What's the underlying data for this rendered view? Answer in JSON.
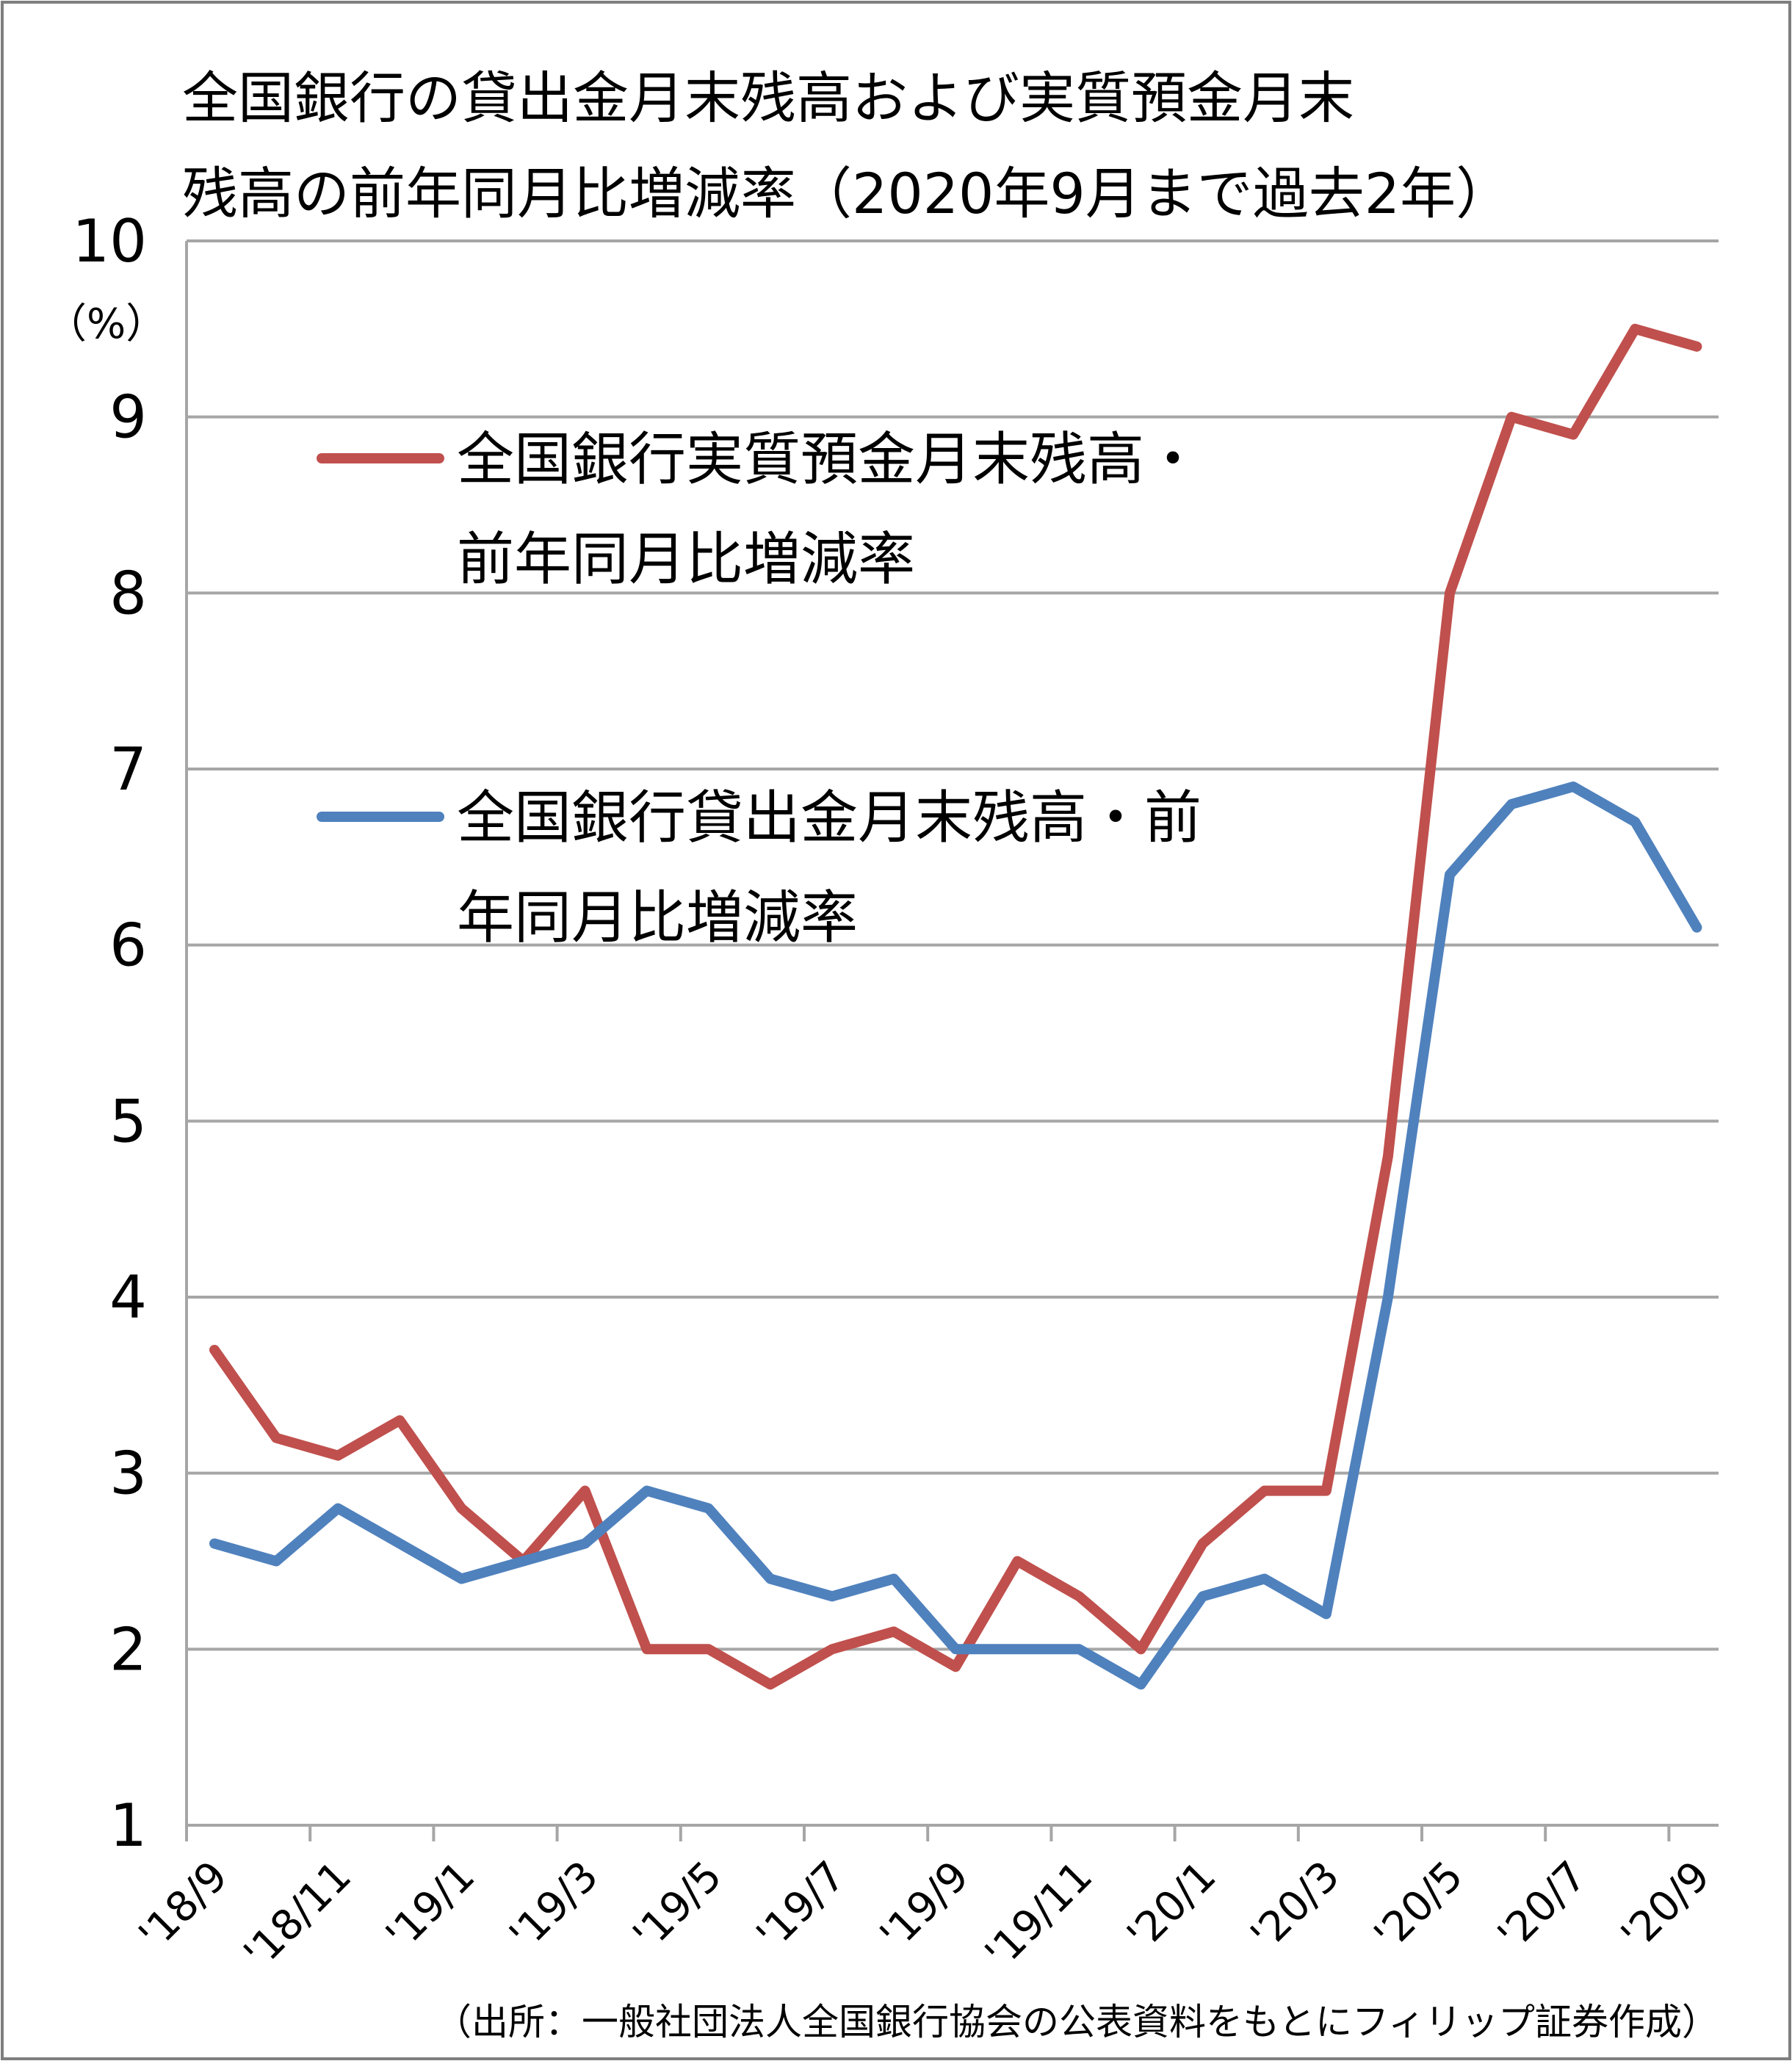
{
  "chart_data": {
    "type": "line",
    "title_lines": [
      "全国銀行の貸出金月末残高および実質預金月末",
      "残高の前年同月比増減率（2020年9月まで過去2年）"
    ],
    "y_unit": "（%）",
    "ylim": [
      1,
      10
    ],
    "y_ticks": [
      1,
      2,
      3,
      4,
      5,
      6,
      7,
      8,
      9,
      10
    ],
    "grid": "horizontal",
    "legend_position": "upper-left-inside",
    "x_tick_labels": [
      "'18/9",
      "'18/11",
      "'19/1",
      "'19/3",
      "'19/5",
      "'19/7",
      "'19/9",
      "'19/11",
      "'20/1",
      "'20/3",
      "'20/5",
      "'20/7",
      "'20/9"
    ],
    "x": [
      "'18/9",
      "'18/10",
      "'18/11",
      "'18/12",
      "'19/1",
      "'19/2",
      "'19/3",
      "'19/4",
      "'19/5",
      "'19/6",
      "'19/7",
      "'19/8",
      "'19/9",
      "'19/10",
      "'19/11",
      "'19/12",
      "'20/1",
      "'20/2",
      "'20/3",
      "'20/4",
      "'20/5",
      "'20/6",
      "'20/7",
      "'20/8",
      "'20/9"
    ],
    "series": [
      {
        "name_lines": [
          "全国銀行実質預金月末残高・",
          "前年同月比増減率"
        ],
        "color": "#c0504d",
        "values": [
          3.7,
          3.2,
          3.1,
          3.3,
          2.8,
          2.5,
          2.9,
          2.0,
          2.0,
          1.8,
          2.0,
          2.1,
          1.9,
          2.5,
          2.3,
          2.0,
          2.6,
          2.9,
          2.9,
          4.8,
          8.0,
          9.0,
          8.9,
          9.5,
          9.4
        ]
      },
      {
        "name_lines": [
          "全国銀行貸出金月末残高・前",
          "年同月比増減率"
        ],
        "color": "#4f81bd",
        "values": [
          2.6,
          2.5,
          2.8,
          2.6,
          2.4,
          2.5,
          2.6,
          2.9,
          2.8,
          2.4,
          2.3,
          2.4,
          2.0,
          2.0,
          2.0,
          1.8,
          2.3,
          2.4,
          2.2,
          4.0,
          6.4,
          6.8,
          6.9,
          6.7,
          6.1
        ]
      }
    ],
    "source": "（出所：一般社団法人全国銀行協会の公表資料をもとにフィリップ証券作成）"
  }
}
